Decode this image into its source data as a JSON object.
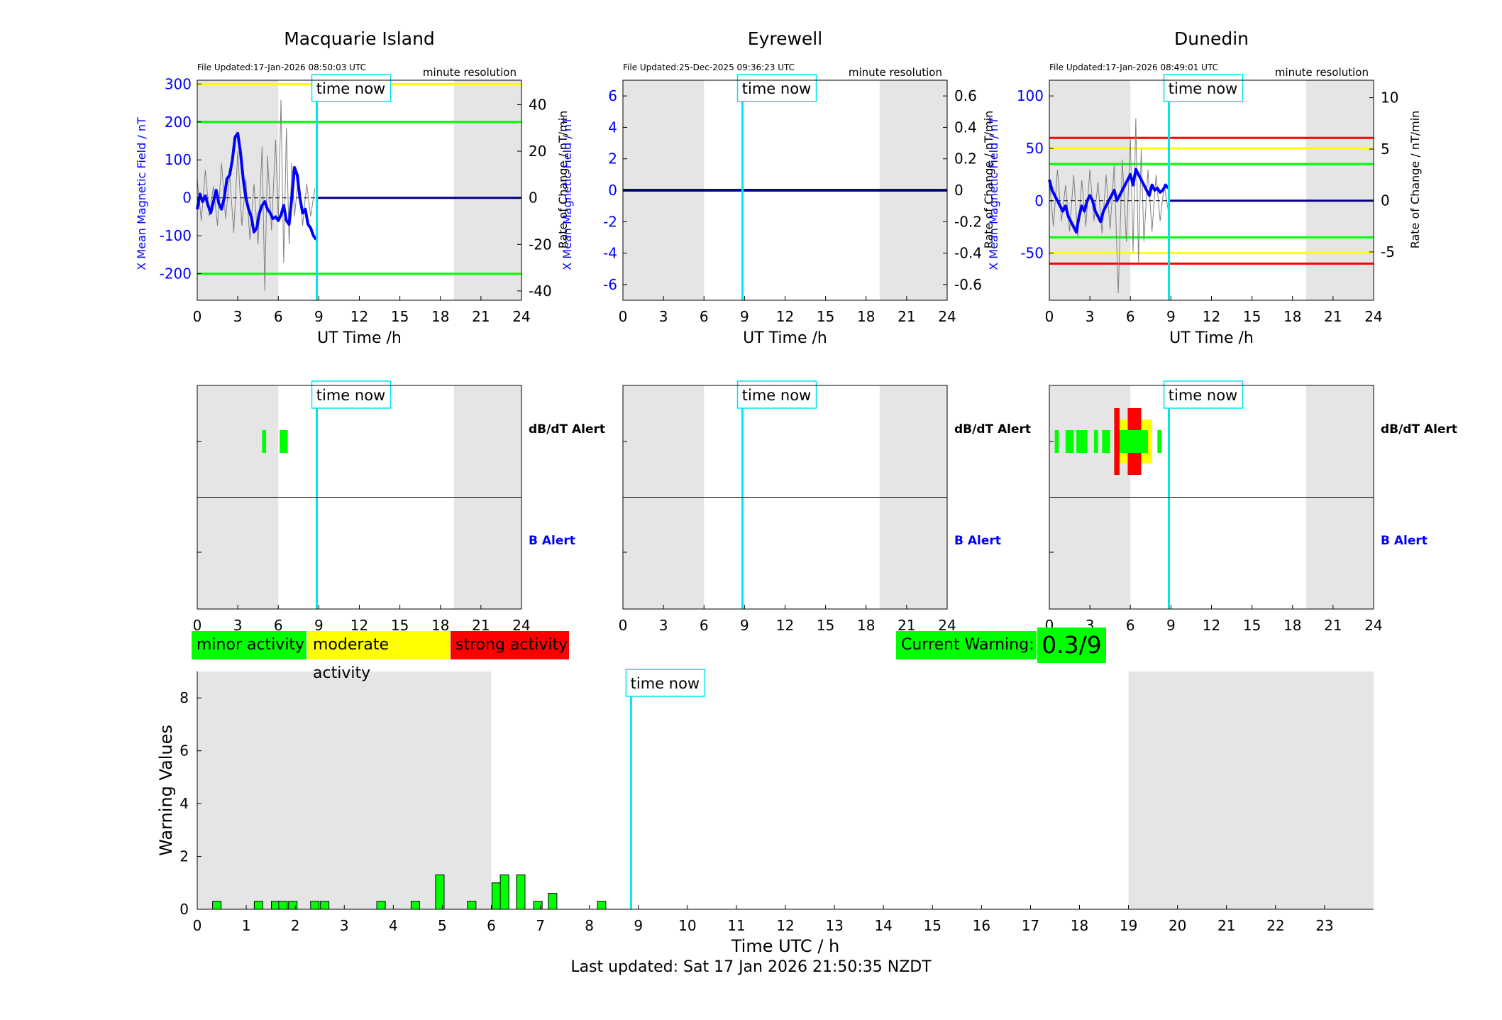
{
  "colors": {
    "minor": "#00ff00",
    "moderate": "#ffff00",
    "strong": "#ff0000",
    "night": "#e5e5e5",
    "timenow": "#00e5ee",
    "bfield": "#0000ff",
    "rate": "#808080",
    "zero_line": "#00008b"
  },
  "common": {
    "time_now_label": "time now",
    "resolution_label": "minute resolution",
    "x_label": "UT Time /h",
    "left_y_label": "X Mean Magnetic Field / nT",
    "right_y_label": "Rate of Change / nT/min",
    "dbdt_alert_label": "dB/dT Alert",
    "b_alert_label": "B Alert",
    "x_ticks": [
      "0",
      "3",
      "6",
      "9",
      "12",
      "15",
      "18",
      "21",
      "24"
    ],
    "time_now_hour": 8.85,
    "night_start_hour": 6,
    "night_end_hour": 19
  },
  "legend": {
    "minor": "minor activity",
    "moderate": "moderate activity",
    "strong": "strong activity"
  },
  "current_warning": {
    "label": "Current Warning:",
    "value": "0.3/9"
  },
  "last_updated": "Last updated: Sat 17 Jan 2026 21:50:35 NZDT",
  "chart_data": [
    {
      "type": "line",
      "title": "Macquarie Island",
      "file_updated": "File Updated:17-Jan-2026 08:50:03 UTC",
      "xlim": [
        0,
        24
      ],
      "left_ylim": [
        -270,
        310
      ],
      "left_ticks": [
        -200,
        -100,
        0,
        100,
        200,
        300
      ],
      "left_tick_labels": [
        "-200",
        "-100",
        "0",
        "100",
        "200",
        "300"
      ],
      "right_ylim": [
        -44,
        50.5
      ],
      "right_ticks": [
        -40,
        -20,
        0,
        20,
        40
      ],
      "right_tick_labels": [
        "-40",
        "-20",
        "0",
        "20",
        "40"
      ],
      "thresholds": [
        {
          "color": "yellow",
          "value": 300
        },
        {
          "color": "green",
          "value": 200
        },
        {
          "color": "green",
          "value": -200
        }
      ],
      "series": [
        {
          "x": [
            0,
            0.2,
            0.4,
            0.6,
            0.8,
            1,
            1.2,
            1.4,
            1.6,
            1.8,
            2,
            2.2,
            2.4,
            2.6,
            2.8,
            3,
            3.2,
            3.4,
            3.6,
            3.8,
            4,
            4.2,
            4.4,
            4.6,
            4.8,
            5,
            5.2,
            5.4,
            5.6,
            5.8,
            6,
            6.2,
            6.4,
            6.6,
            6.8,
            7,
            7.2,
            7.4,
            7.6,
            7.8,
            8,
            8.2,
            8.4,
            8.6,
            8.8
          ],
          "y": [
            -30,
            10,
            -10,
            5,
            -20,
            -40,
            -10,
            20,
            -15,
            -30,
            0,
            50,
            60,
            100,
            160,
            170,
            120,
            50,
            0,
            -30,
            -50,
            -90,
            -80,
            -40,
            -20,
            -10,
            -30,
            -40,
            -55,
            -50,
            -60,
            -45,
            -20,
            -60,
            -70,
            0,
            80,
            60,
            0,
            -40,
            -30,
            -70,
            -80,
            -100,
            -110
          ]
        }
      ],
      "rate_points": [
        [
          0,
          8
        ],
        [
          0.3,
          -10
        ],
        [
          0.6,
          12
        ],
        [
          0.9,
          -8
        ],
        [
          1.2,
          5
        ],
        [
          1.5,
          -12
        ],
        [
          1.8,
          15
        ],
        [
          2.1,
          -9
        ],
        [
          2.4,
          10
        ],
        [
          2.7,
          -15
        ],
        [
          3,
          20
        ],
        [
          3.3,
          -12
        ],
        [
          3.6,
          8
        ],
        [
          3.9,
          -18
        ],
        [
          4.2,
          6
        ],
        [
          4.5,
          -20
        ],
        [
          4.8,
          22
        ],
        [
          5,
          -40
        ],
        [
          5.2,
          18
        ],
        [
          5.5,
          -14
        ],
        [
          5.8,
          25
        ],
        [
          6,
          -10
        ],
        [
          6.2,
          42
        ],
        [
          6.4,
          -28
        ],
        [
          6.6,
          30
        ],
        [
          6.8,
          -20
        ],
        [
          7,
          15
        ],
        [
          7.2,
          -8
        ],
        [
          7.5,
          10
        ],
        [
          7.8,
          -12
        ],
        [
          8.1,
          6
        ],
        [
          8.4,
          -8
        ],
        [
          8.7,
          4
        ]
      ],
      "after_value": 0,
      "dbdt_alerts": [
        {
          "x0": 4.8,
          "x1": 5.1,
          "level": "minor"
        },
        {
          "x0": 6.1,
          "x1": 6.7,
          "level": "minor"
        }
      ],
      "b_alerts": []
    },
    {
      "type": "line",
      "title": "Eyrewell",
      "file_updated": "File Updated:25-Dec-2025 09:36:23 UTC",
      "xlim": [
        0,
        24
      ],
      "left_ylim": [
        -7,
        7
      ],
      "left_ticks": [
        -6,
        -4,
        -2,
        0,
        2,
        4,
        6
      ],
      "left_tick_labels": [
        "-6",
        "-4",
        "-2",
        "0",
        "2",
        "4",
        "6"
      ],
      "right_ylim": [
        -0.7,
        0.7
      ],
      "right_ticks": [
        -0.6,
        -0.4,
        -0.2,
        0,
        0.2,
        0.4,
        0.6
      ],
      "right_tick_labels": [
        "-0.6",
        "-0.4",
        "-0.2",
        "0",
        "0.2",
        "0.4",
        "0.6"
      ],
      "thresholds": [],
      "series": [
        {
          "x": [
            0,
            24
          ],
          "y": [
            0,
            0
          ]
        }
      ],
      "rate_points": [],
      "after_value": null,
      "dbdt_alerts": [],
      "b_alerts": []
    },
    {
      "type": "line",
      "title": "Dunedin",
      "file_updated": "File Updated:17-Jan-2026 08:49:01 UTC",
      "xlim": [
        0,
        24
      ],
      "left_ylim": [
        -95,
        115
      ],
      "left_ticks": [
        -50,
        0,
        50,
        100
      ],
      "left_tick_labels": [
        "-50",
        "0",
        "50",
        "100"
      ],
      "right_ylim": [
        -9.7,
        11.7
      ],
      "right_ticks": [
        -5,
        0,
        5,
        10
      ],
      "right_tick_labels": [
        "-5",
        "0",
        "5",
        "10"
      ],
      "thresholds": [
        {
          "color": "red",
          "value": 60
        },
        {
          "color": "yellow",
          "value": 50
        },
        {
          "color": "green",
          "value": 35
        },
        {
          "color": "green",
          "value": -35
        },
        {
          "color": "yellow",
          "value": -50
        },
        {
          "color": "red",
          "value": -60
        }
      ],
      "series": [
        {
          "x": [
            0,
            0.2,
            0.4,
            0.6,
            0.8,
            1,
            1.2,
            1.4,
            1.6,
            1.8,
            2,
            2.2,
            2.4,
            2.6,
            2.8,
            3,
            3.2,
            3.4,
            3.6,
            3.8,
            4,
            4.2,
            4.4,
            4.6,
            4.8,
            5,
            5.2,
            5.4,
            5.6,
            5.8,
            6,
            6.2,
            6.4,
            6.6,
            6.8,
            7,
            7.2,
            7.4,
            7.6,
            7.8,
            8,
            8.2,
            8.4,
            8.6,
            8.8
          ],
          "y": [
            20,
            10,
            5,
            0,
            -5,
            -10,
            -5,
            -15,
            -20,
            -25,
            -30,
            -15,
            -5,
            -10,
            0,
            5,
            0,
            -10,
            -15,
            -20,
            -10,
            -5,
            0,
            5,
            10,
            0,
            5,
            10,
            15,
            20,
            25,
            15,
            30,
            25,
            20,
            15,
            10,
            5,
            15,
            10,
            12,
            8,
            10,
            15,
            12
          ]
        }
      ],
      "rate_points": [
        [
          0,
          2
        ],
        [
          0.3,
          -2.5
        ],
        [
          0.6,
          3
        ],
        [
          0.9,
          -2
        ],
        [
          1.2,
          1.5
        ],
        [
          1.5,
          -3
        ],
        [
          1.8,
          2.5
        ],
        [
          2.1,
          -3.5
        ],
        [
          2.4,
          2
        ],
        [
          2.7,
          -2.5
        ],
        [
          3,
          3
        ],
        [
          3.3,
          -2
        ],
        [
          3.6,
          1.8
        ],
        [
          3.9,
          -3.2
        ],
        [
          4.2,
          2.5
        ],
        [
          4.5,
          -2.8
        ],
        [
          4.8,
          3.5
        ],
        [
          5.1,
          -9
        ],
        [
          5.4,
          4
        ],
        [
          5.7,
          -4
        ],
        [
          6,
          6
        ],
        [
          6.2,
          -5
        ],
        [
          6.4,
          8
        ],
        [
          6.6,
          -6
        ],
        [
          6.8,
          5
        ],
        [
          7,
          -4
        ],
        [
          7.3,
          3
        ],
        [
          7.6,
          -3
        ],
        [
          7.9,
          2.5
        ],
        [
          8.2,
          -2
        ],
        [
          8.5,
          1.5
        ],
        [
          8.8,
          -1
        ]
      ],
      "after_value": 0,
      "dbdt_alerts": [
        {
          "x0": 0.4,
          "x1": 0.7,
          "level": "minor"
        },
        {
          "x0": 1.2,
          "x1": 1.8,
          "level": "minor"
        },
        {
          "x0": 2.0,
          "x1": 2.8,
          "level": "minor"
        },
        {
          "x0": 3.3,
          "x1": 3.6,
          "level": "minor"
        },
        {
          "x0": 3.9,
          "x1": 4.5,
          "level": "minor"
        },
        {
          "x0": 4.8,
          "x1": 5.2,
          "level": "strong"
        },
        {
          "x0": 5.2,
          "x1": 5.8,
          "level": "moderate"
        },
        {
          "x0": 5.8,
          "x1": 6.8,
          "level": "strong"
        },
        {
          "x0": 6.8,
          "x1": 7.3,
          "level": "moderate"
        },
        {
          "x0": 7.3,
          "x1": 7.6,
          "level": "moderate"
        },
        {
          "x0": 8.0,
          "x1": 8.3,
          "level": "minor"
        }
      ],
      "b_alerts": []
    },
    {
      "type": "bar",
      "ylabel": "Warning Values",
      "xlabel": "Time UTC / h",
      "xlim": [
        0,
        24
      ],
      "ylim": [
        0,
        9
      ],
      "y_ticks": [
        "0",
        "2",
        "4",
        "6",
        "8"
      ],
      "x_ticks": [
        "0",
        "1",
        "2",
        "3",
        "4",
        "5",
        "6",
        "7",
        "8",
        "9",
        "10",
        "11",
        "12",
        "13",
        "14",
        "15",
        "16",
        "17",
        "18",
        "19",
        "20",
        "21",
        "22",
        "23"
      ],
      "bars": [
        {
          "x": 0.4,
          "value": 0.3
        },
        {
          "x": 1.25,
          "value": 0.3
        },
        {
          "x": 1.6,
          "value": 0.3
        },
        {
          "x": 1.75,
          "value": 0.3
        },
        {
          "x": 1.95,
          "value": 0.3
        },
        {
          "x": 2.4,
          "value": 0.3
        },
        {
          "x": 2.6,
          "value": 0.3
        },
        {
          "x": 3.75,
          "value": 0.3
        },
        {
          "x": 4.45,
          "value": 0.3
        },
        {
          "x": 4.95,
          "value": 1.3
        },
        {
          "x": 5.6,
          "value": 0.3
        },
        {
          "x": 6.1,
          "value": 1.0
        },
        {
          "x": 6.27,
          "value": 1.3
        },
        {
          "x": 6.6,
          "value": 1.3
        },
        {
          "x": 6.95,
          "value": 0.3
        },
        {
          "x": 7.25,
          "value": 0.6
        },
        {
          "x": 8.25,
          "value": 0.3
        }
      ]
    }
  ]
}
